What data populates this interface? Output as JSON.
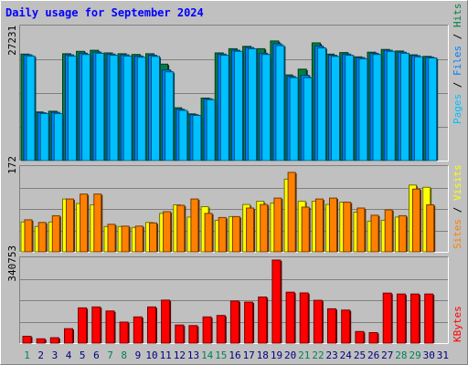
{
  "title": "Daily usage for September 2024",
  "colors": {
    "background": "#c0c0c0",
    "plot_bg": "#c0c0c0",
    "title": "#0000ff",
    "hits": "#008040",
    "files": "#0080ff",
    "pages": "#00c0ff",
    "visits": "#ffff00",
    "sites": "#ff8000",
    "kbytes": "#ff0000",
    "weekend_day": "#00805c",
    "weekday": "#000080"
  },
  "chart_data": [
    {
      "type": "bar",
      "panel": "top",
      "y_tick_label": "27231",
      "y_tick_value": 27231,
      "ylim": [
        0,
        35000
      ],
      "legend": [
        "Pages",
        "Files",
        "Hits"
      ],
      "categories": [
        "1",
        "2",
        "3",
        "4",
        "5",
        "6",
        "7",
        "8",
        "9",
        "10",
        "11",
        "12",
        "13",
        "14",
        "15",
        "16",
        "17",
        "18",
        "19",
        "20",
        "21",
        "22",
        "23",
        "24",
        "25",
        "26",
        "27",
        "28",
        "29",
        "30",
        "31"
      ],
      "series": [
        {
          "name": "Hits",
          "values": [
            27600,
            12600,
            12800,
            27700,
            28300,
            28600,
            27900,
            27700,
            27500,
            27700,
            25000,
            13700,
            12100,
            16200,
            27900,
            29000,
            29600,
            29000,
            31000,
            22200,
            23700,
            30500,
            27600,
            28000,
            26900,
            28100,
            28800,
            28400,
            27400,
            27000,
            null
          ]
        },
        {
          "name": "Files",
          "values": [
            27400,
            12400,
            12500,
            27400,
            27800,
            28100,
            27600,
            27400,
            27100,
            27300,
            23500,
            13300,
            11900,
            16000,
            27600,
            28600,
            29300,
            27800,
            30300,
            21800,
            22100,
            29700,
            27300,
            27600,
            26700,
            27800,
            28600,
            28100,
            27200,
            26800,
            null
          ]
        },
        {
          "name": "Pages",
          "values": [
            27100,
            12200,
            12200,
            27100,
            27500,
            27800,
            27300,
            27100,
            26800,
            27000,
            23000,
            13000,
            11700,
            15800,
            27300,
            28300,
            29000,
            27500,
            29800,
            21500,
            21500,
            29200,
            27000,
            27300,
            26400,
            27500,
            28300,
            27800,
            26900,
            26600,
            null
          ]
        }
      ]
    },
    {
      "type": "bar",
      "panel": "middle",
      "y_tick_label": "172",
      "y_tick_value": 172,
      "ylim": [
        0,
        190
      ],
      "legend": [
        "Sites",
        "Visits"
      ],
      "categories": [
        "1",
        "2",
        "3",
        "4",
        "5",
        "6",
        "7",
        "8",
        "9",
        "10",
        "11",
        "12",
        "13",
        "14",
        "15",
        "16",
        "17",
        "18",
        "19",
        "20",
        "21",
        "22",
        "23",
        "24",
        "25",
        "26",
        "27",
        "28",
        "29",
        "30",
        "31"
      ],
      "series": [
        {
          "name": "Visits",
          "values": [
            66,
            56,
            66,
            117,
            107,
            104,
            56,
            56,
            54,
            65,
            85,
            104,
            77,
            100,
            70,
            78,
            105,
            112,
            108,
            161,
            112,
            112,
            105,
            110,
            88,
            68,
            70,
            77,
            148,
            143,
            null
          ]
        },
        {
          "name": "Sites",
          "values": [
            71,
            65,
            80,
            117,
            128,
            128,
            61,
            57,
            57,
            64,
            89,
            103,
            117,
            85,
            76,
            78,
            97,
            105,
            119,
            176,
            99,
            117,
            119,
            110,
            97,
            81,
            93,
            80,
            139,
            104,
            null
          ]
        }
      ]
    },
    {
      "type": "bar",
      "panel": "bottom",
      "y_tick_label": "340753",
      "y_tick_value": 340753,
      "ylim": [
        0,
        475000
      ],
      "legend": [
        "KBytes"
      ],
      "categories": [
        "1",
        "2",
        "3",
        "4",
        "5",
        "6",
        "7",
        "8",
        "9",
        "10",
        "11",
        "12",
        "13",
        "14",
        "15",
        "16",
        "17",
        "18",
        "19",
        "20",
        "21",
        "22",
        "23",
        "24",
        "25",
        "26",
        "27",
        "28",
        "29",
        "30",
        "31"
      ],
      "series": [
        {
          "name": "KBytes",
          "values": [
            38000,
            24000,
            30000,
            80000,
            195000,
            200000,
            178000,
            116000,
            145000,
            200000,
            238000,
            100000,
            97000,
            145000,
            153000,
            233000,
            227000,
            255000,
            460000,
            282000,
            278000,
            237000,
            190000,
            183000,
            64000,
            58000,
            277000,
            272000,
            272000,
            272000,
            null
          ]
        }
      ]
    }
  ]
}
